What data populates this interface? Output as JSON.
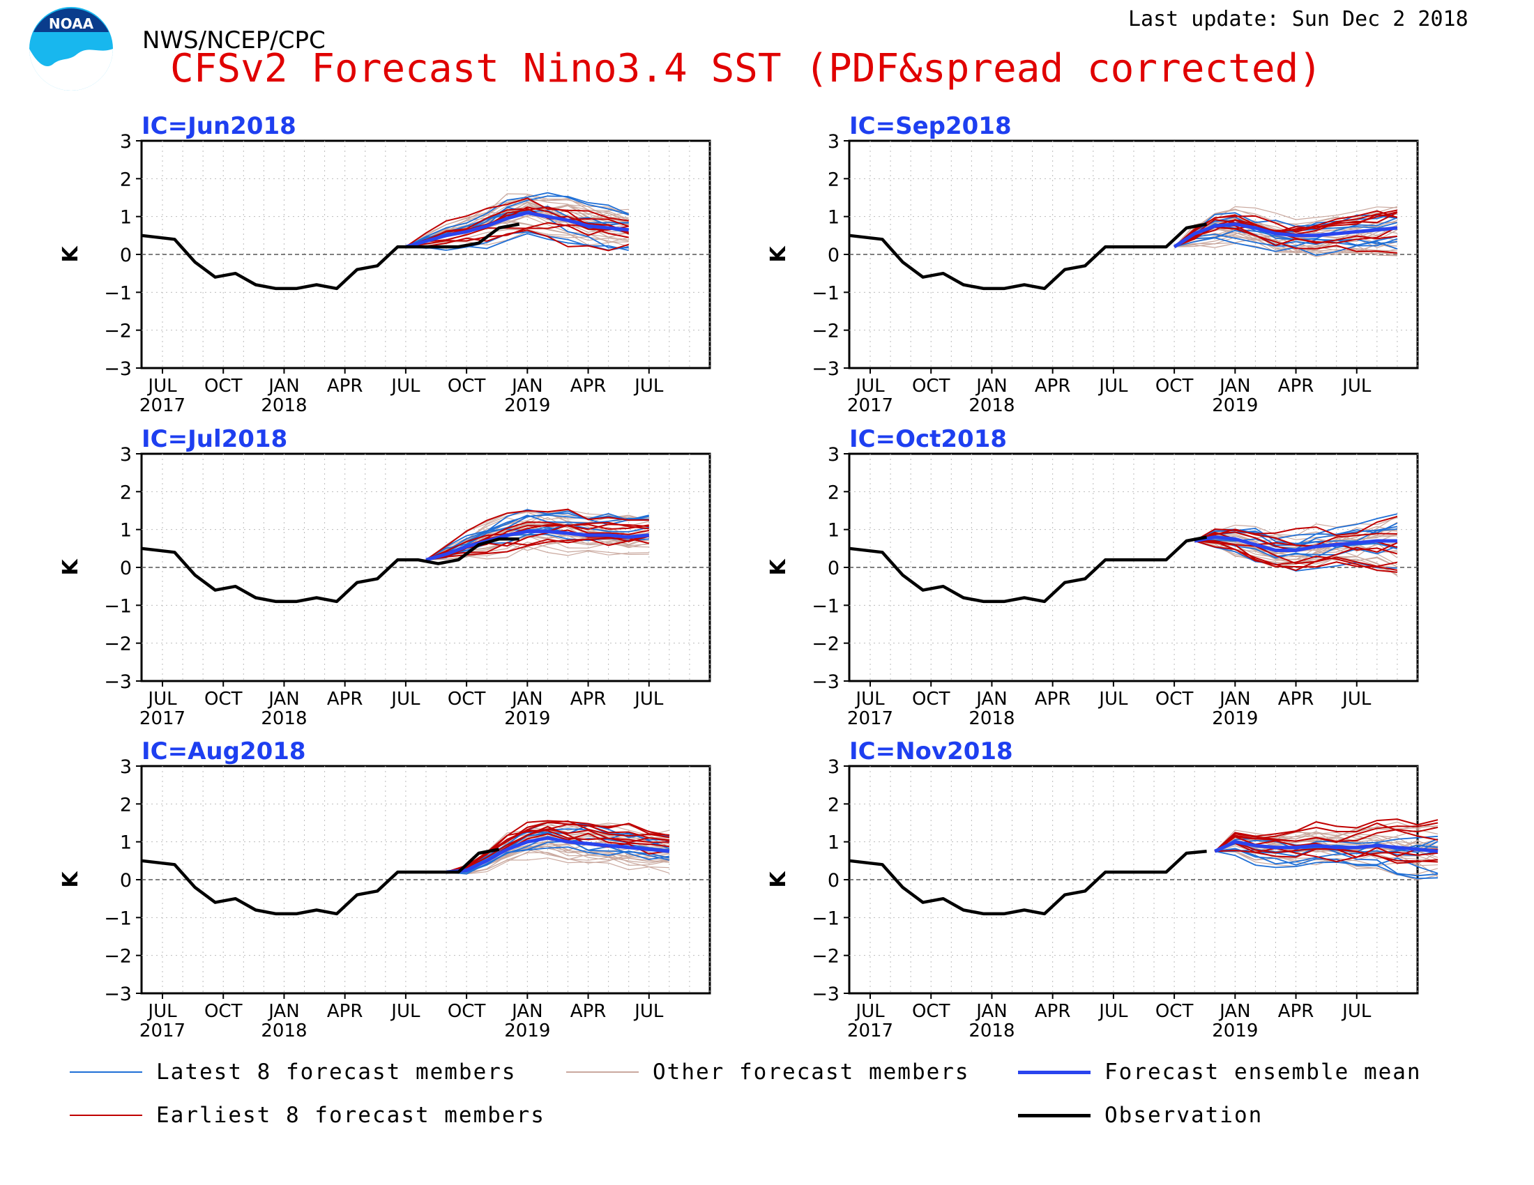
{
  "header": {
    "org": "NWS/NCEP/CPC",
    "title": "CFSv2 Forecast Nino3.4 SST (PDF&spread corrected)",
    "last_update": "Last update: Sun Dec 2 2018",
    "logo_text": "NOAA"
  },
  "colors": {
    "latest": "#1f6fd6",
    "earliest": "#c00000",
    "other": "#c9a89e",
    "mean": "#2a44ee",
    "obs": "#000000",
    "panel_title": "#1e3ff0",
    "title": "#e00000"
  },
  "legend": [
    {
      "label": "Latest 8 forecast members",
      "color": "#1f6fd6",
      "width": 2
    },
    {
      "label": "Other forecast members",
      "color": "#c9a89e",
      "width": 2
    },
    {
      "label": "Forecast ensemble mean",
      "color": "#2a44ee",
      "width": 5
    },
    {
      "label": "Earliest 8 forecast members",
      "color": "#c00000",
      "width": 2
    },
    {
      "label": "Observation",
      "color": "#000000",
      "width": 5
    }
  ],
  "chart_data": [
    {
      "type": "line",
      "title": "IC=Jun2018",
      "ylabel": "K",
      "ylim": [
        -3,
        3
      ],
      "yticks": [
        "3",
        "2",
        "1",
        "0",
        "−1",
        "−2",
        "−3"
      ],
      "xticks": [
        {
          "label": "JUL",
          "sub": "2017"
        },
        {
          "label": "OCT",
          "sub": ""
        },
        {
          "label": "JAN",
          "sub": "2018"
        },
        {
          "label": "APR",
          "sub": ""
        },
        {
          "label": "JUL",
          "sub": ""
        },
        {
          "label": "OCT",
          "sub": ""
        },
        {
          "label": "JAN",
          "sub": "2019"
        },
        {
          "label": "APR",
          "sub": ""
        },
        {
          "label": "JUL",
          "sub": ""
        }
      ],
      "observation": [
        0.5,
        0.4,
        -0.2,
        -0.6,
        -0.5,
        -0.8,
        -0.9,
        -0.9,
        -0.8,
        -0.9,
        -0.4,
        -0.3,
        0.2,
        0.2,
        0.2,
        0.2,
        0.3,
        0.7,
        0.8
      ],
      "forecast_start_index": 12,
      "ensemble_mean": [
        0.2,
        0.35,
        0.5,
        0.6,
        0.75,
        0.95,
        1.1,
        1.0,
        0.9,
        0.75,
        0.7,
        0.65
      ],
      "ensemble_spread": [
        0.05,
        0.2,
        0.35,
        0.45,
        0.55,
        0.6,
        0.6,
        0.6,
        0.6,
        0.55,
        0.55,
        0.5
      ]
    },
    {
      "type": "line",
      "title": "IC=Sep2018",
      "ylabel": "K",
      "ylim": [
        -3,
        3
      ],
      "yticks": [
        "3",
        "2",
        "1",
        "0",
        "−1",
        "−2",
        "−3"
      ],
      "xticks": [
        {
          "label": "JUL",
          "sub": "2017"
        },
        {
          "label": "OCT",
          "sub": ""
        },
        {
          "label": "JAN",
          "sub": "2018"
        },
        {
          "label": "APR",
          "sub": ""
        },
        {
          "label": "JUL",
          "sub": ""
        },
        {
          "label": "OCT",
          "sub": ""
        },
        {
          "label": "JAN",
          "sub": "2019"
        },
        {
          "label": "APR",
          "sub": ""
        },
        {
          "label": "JUL",
          "sub": ""
        }
      ],
      "observation": [
        0.5,
        0.4,
        -0.2,
        -0.6,
        -0.5,
        -0.8,
        -0.9,
        -0.9,
        -0.8,
        -0.9,
        -0.4,
        -0.3,
        0.2,
        0.2,
        0.2,
        0.2,
        0.7,
        0.8
      ],
      "forecast_start_index": 15,
      "ensemble_mean": [
        0.2,
        0.55,
        0.75,
        0.8,
        0.7,
        0.55,
        0.5,
        0.5,
        0.55,
        0.6,
        0.65,
        0.7
      ],
      "ensemble_spread": [
        0.05,
        0.35,
        0.5,
        0.55,
        0.55,
        0.55,
        0.55,
        0.55,
        0.55,
        0.55,
        0.6,
        0.65
      ]
    },
    {
      "type": "line",
      "title": "IC=Jul2018",
      "ylabel": "K",
      "ylim": [
        -3,
        3
      ],
      "yticks": [
        "3",
        "2",
        "1",
        "0",
        "−1",
        "−2",
        "−3"
      ],
      "xticks": [
        {
          "label": "JUL",
          "sub": "2017"
        },
        {
          "label": "OCT",
          "sub": ""
        },
        {
          "label": "JAN",
          "sub": "2018"
        },
        {
          "label": "APR",
          "sub": ""
        },
        {
          "label": "JUL",
          "sub": ""
        },
        {
          "label": "OCT",
          "sub": ""
        },
        {
          "label": "JAN",
          "sub": "2019"
        },
        {
          "label": "APR",
          "sub": ""
        },
        {
          "label": "JUL",
          "sub": ""
        }
      ],
      "observation": [
        0.5,
        0.4,
        -0.2,
        -0.6,
        -0.5,
        -0.8,
        -0.9,
        -0.9,
        -0.8,
        -0.9,
        -0.4,
        -0.3,
        0.2,
        0.2,
        0.1,
        0.2,
        0.6,
        0.75,
        0.75
      ],
      "forecast_start_index": 13,
      "ensemble_mean": [
        0.2,
        0.35,
        0.55,
        0.7,
        0.85,
        0.95,
        0.95,
        0.9,
        0.85,
        0.85,
        0.8,
        0.85
      ],
      "ensemble_spread": [
        0.05,
        0.25,
        0.4,
        0.5,
        0.55,
        0.55,
        0.55,
        0.55,
        0.5,
        0.5,
        0.5,
        0.45
      ]
    },
    {
      "type": "line",
      "title": "IC=Oct2018",
      "ylabel": "K",
      "ylim": [
        -3,
        3
      ],
      "yticks": [
        "3",
        "2",
        "1",
        "0",
        "−1",
        "−2",
        "−3"
      ],
      "xticks": [
        {
          "label": "JUL",
          "sub": "2017"
        },
        {
          "label": "OCT",
          "sub": ""
        },
        {
          "label": "JAN",
          "sub": "2018"
        },
        {
          "label": "APR",
          "sub": ""
        },
        {
          "label": "JUL",
          "sub": ""
        },
        {
          "label": "OCT",
          "sub": ""
        },
        {
          "label": "JAN",
          "sub": "2019"
        },
        {
          "label": "APR",
          "sub": ""
        },
        {
          "label": "JUL",
          "sub": ""
        }
      ],
      "observation": [
        0.5,
        0.4,
        -0.2,
        -0.6,
        -0.5,
        -0.8,
        -0.9,
        -0.9,
        -0.8,
        -0.9,
        -0.4,
        -0.3,
        0.2,
        0.2,
        0.2,
        0.2,
        0.7,
        0.8
      ],
      "forecast_start_index": 16,
      "ensemble_mean": [
        0.7,
        0.8,
        0.75,
        0.6,
        0.45,
        0.45,
        0.55,
        0.6,
        0.65,
        0.7,
        0.7
      ],
      "ensemble_spread": [
        0.05,
        0.35,
        0.5,
        0.55,
        0.55,
        0.55,
        0.55,
        0.55,
        0.6,
        0.7,
        0.8
      ]
    },
    {
      "type": "line",
      "title": "IC=Aug2018",
      "ylabel": "K",
      "ylim": [
        -3,
        3
      ],
      "yticks": [
        "3",
        "2",
        "1",
        "0",
        "−1",
        "−2",
        "−3"
      ],
      "xticks": [
        {
          "label": "JUL",
          "sub": "2017"
        },
        {
          "label": "OCT",
          "sub": ""
        },
        {
          "label": "JAN",
          "sub": "2018"
        },
        {
          "label": "APR",
          "sub": ""
        },
        {
          "label": "JUL",
          "sub": ""
        },
        {
          "label": "OCT",
          "sub": ""
        },
        {
          "label": "JAN",
          "sub": "2019"
        },
        {
          "label": "APR",
          "sub": ""
        },
        {
          "label": "JUL",
          "sub": ""
        }
      ],
      "observation": [
        0.5,
        0.4,
        -0.2,
        -0.6,
        -0.5,
        -0.8,
        -0.9,
        -0.9,
        -0.8,
        -0.9,
        -0.4,
        -0.3,
        0.2,
        0.2,
        0.2,
        0.2,
        0.7,
        0.8
      ],
      "forecast_start_index": 14,
      "ensemble_mean": [
        0.2,
        0.25,
        0.5,
        0.8,
        1.0,
        1.1,
        1.0,
        0.95,
        0.9,
        0.85,
        0.8,
        0.75
      ],
      "ensemble_spread": [
        0.05,
        0.15,
        0.3,
        0.4,
        0.5,
        0.55,
        0.55,
        0.55,
        0.55,
        0.55,
        0.5,
        0.5
      ]
    },
    {
      "type": "line",
      "title": "IC=Nov2018",
      "ylabel": "K",
      "ylim": [
        -3,
        3
      ],
      "yticks": [
        "3",
        "2",
        "1",
        "0",
        "−1",
        "−2",
        "−3"
      ],
      "xticks": [
        {
          "label": "JUL",
          "sub": "2017"
        },
        {
          "label": "OCT",
          "sub": ""
        },
        {
          "label": "JAN",
          "sub": "2018"
        },
        {
          "label": "APR",
          "sub": ""
        },
        {
          "label": "JUL",
          "sub": ""
        },
        {
          "label": "OCT",
          "sub": ""
        },
        {
          "label": "JAN",
          "sub": "2019"
        },
        {
          "label": "APR",
          "sub": ""
        },
        {
          "label": "JUL",
          "sub": ""
        }
      ],
      "observation": [
        0.5,
        0.4,
        -0.2,
        -0.6,
        -0.5,
        -0.8,
        -0.9,
        -0.9,
        -0.8,
        -0.9,
        -0.4,
        -0.3,
        0.2,
        0.2,
        0.2,
        0.2,
        0.7,
        0.75
      ],
      "forecast_start_index": 17,
      "ensemble_mean": [
        0.75,
        1.0,
        0.9,
        0.85,
        0.85,
        0.9,
        0.85,
        0.85,
        0.9,
        0.85,
        0.8,
        0.75
      ],
      "ensemble_spread": [
        0.05,
        0.35,
        0.45,
        0.5,
        0.55,
        0.55,
        0.55,
        0.55,
        0.6,
        0.65,
        0.7,
        0.75
      ]
    }
  ]
}
